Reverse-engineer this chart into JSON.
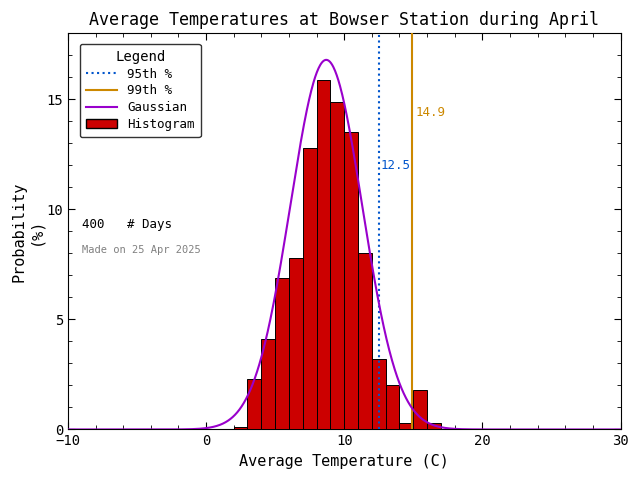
{
  "title": "Average Temperatures at Bowser Station during April",
  "xlabel": "Average Temperature (C)",
  "ylabel": "Probability\n(%)",
  "xlim": [
    -10,
    30
  ],
  "ylim": [
    0,
    18
  ],
  "yticks": [
    0,
    5,
    10,
    15
  ],
  "xticks": [
    -10,
    0,
    10,
    20,
    30
  ],
  "bin_left_edges": [
    2,
    3,
    4,
    5,
    6,
    7,
    8,
    9,
    10,
    11,
    12,
    13,
    14,
    15,
    16
  ],
  "bin_heights": [
    0.1,
    2.3,
    4.1,
    6.9,
    7.8,
    12.8,
    15.9,
    14.9,
    13.5,
    8.0,
    3.2,
    2.0,
    0.3,
    1.8,
    0.3
  ],
  "gauss_mean": 8.7,
  "gauss_std": 2.6,
  "gauss_peak": 16.8,
  "pct95": 12.5,
  "pct99": 14.9,
  "n_days": 400,
  "made_on": "Made on 25 Apr 2025",
  "bar_color": "#cc0000",
  "bar_edgecolor": "#000000",
  "gauss_color": "#9900cc",
  "pct95_color": "#0055cc",
  "pct99_color": "#cc8800",
  "background_color": "#ffffff",
  "title_fontsize": 12,
  "axis_fontsize": 11,
  "legend_fontsize": 9,
  "tick_labelsize": 10
}
